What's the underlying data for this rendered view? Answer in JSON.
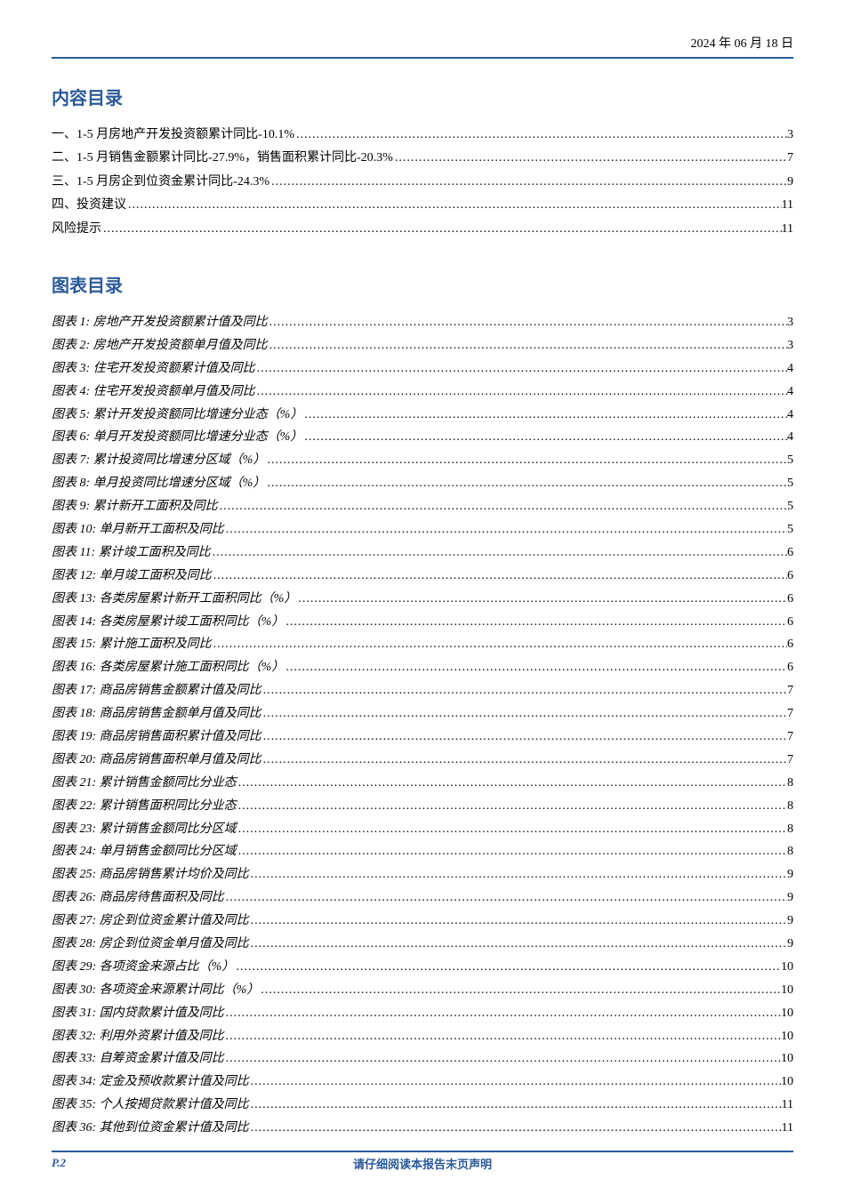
{
  "header": {
    "date": "2024 年 06 月 18 日"
  },
  "toc": {
    "title": "内容目录",
    "items": [
      {
        "label": "一、1-5 月房地产开发投资额累计同比-10.1%",
        "page": "3"
      },
      {
        "label": "二、1-5 月销售金额累计同比-27.9%，销售面积累计同比-20.3%",
        "page": "7"
      },
      {
        "label": "三、1-5 月房企到位资金累计同比-24.3%",
        "page": "9"
      },
      {
        "label": "四、投资建议",
        "page": "11"
      },
      {
        "label": "风险提示",
        "page": "11"
      }
    ]
  },
  "figures": {
    "title": "图表目录",
    "items": [
      {
        "label": "图表 1:  房地产开发投资额累计值及同比",
        "page": "3"
      },
      {
        "label": "图表 2:  房地产开发投资额单月值及同比",
        "page": "3"
      },
      {
        "label": "图表 3:  住宅开发投资额累计值及同比",
        "page": "4"
      },
      {
        "label": "图表 4:  住宅开发投资额单月值及同比",
        "page": "4"
      },
      {
        "label": "图表 5:  累计开发投资额同比增速分业态（%）",
        "page": "4"
      },
      {
        "label": "图表 6:  单月开发投资额同比增速分业态（%）",
        "page": "4"
      },
      {
        "label": "图表 7:  累计投资同比增速分区域（%）",
        "page": "5"
      },
      {
        "label": "图表 8:  单月投资同比增速分区域（%）",
        "page": "5"
      },
      {
        "label": "图表 9:  累计新开工面积及同比",
        "page": "5"
      },
      {
        "label": "图表 10:  单月新开工面积及同比",
        "page": "5"
      },
      {
        "label": "图表 11:  累计竣工面积及同比",
        "page": "6"
      },
      {
        "label": "图表 12:  单月竣工面积及同比",
        "page": "6"
      },
      {
        "label": "图表 13:  各类房屋累计新开工面积同比（%）",
        "page": "6"
      },
      {
        "label": "图表 14:  各类房屋累计竣工面积同比（%）",
        "page": "6"
      },
      {
        "label": "图表 15:  累计施工面积及同比",
        "page": "6"
      },
      {
        "label": "图表 16:  各类房屋累计施工面积同比（%）",
        "page": "6"
      },
      {
        "label": "图表 17:  商品房销售金额累计值及同比",
        "page": "7"
      },
      {
        "label": "图表 18:  商品房销售金额单月值及同比",
        "page": "7"
      },
      {
        "label": "图表 19:  商品房销售面积累计值及同比",
        "page": "7"
      },
      {
        "label": "图表 20:  商品房销售面积单月值及同比",
        "page": "7"
      },
      {
        "label": "图表 21:  累计销售金额同比分业态",
        "page": "8"
      },
      {
        "label": "图表 22:  累计销售面积同比分业态",
        "page": "8"
      },
      {
        "label": "图表 23:  累计销售金额同比分区域",
        "page": "8"
      },
      {
        "label": "图表 24:  单月销售金额同比分区域",
        "page": "8"
      },
      {
        "label": "图表 25:  商品房销售累计均价及同比",
        "page": "9"
      },
      {
        "label": "图表 26:  商品房待售面积及同比",
        "page": "9"
      },
      {
        "label": "图表 27:  房企到位资金累计值及同比",
        "page": "9"
      },
      {
        "label": "图表 28:  房企到位资金单月值及同比",
        "page": "9"
      },
      {
        "label": "图表 29:  各项资金来源占比（%）",
        "page": "10"
      },
      {
        "label": "图表 30:  各项资金来源累计同比（%）",
        "page": "10"
      },
      {
        "label": "图表 31:  国内贷款累计值及同比",
        "page": "10"
      },
      {
        "label": "图表 32:  利用外资累计值及同比",
        "page": "10"
      },
      {
        "label": "图表 33:  自筹资金累计值及同比",
        "page": "10"
      },
      {
        "label": "图表 34:  定金及预收款累计值及同比",
        "page": "10"
      },
      {
        "label": "图表 35:  个人按揭贷款累计值及同比",
        "page": "11"
      },
      {
        "label": "图表 36:  其他到位资金累计值及同比",
        "page": "11"
      }
    ]
  },
  "footer": {
    "pageLabel": "P.2",
    "disclaimer": "请仔细阅读本报告末页声明"
  },
  "colors": {
    "accent": "#2a5a9a",
    "text": "#000000",
    "background": "#ffffff"
  }
}
